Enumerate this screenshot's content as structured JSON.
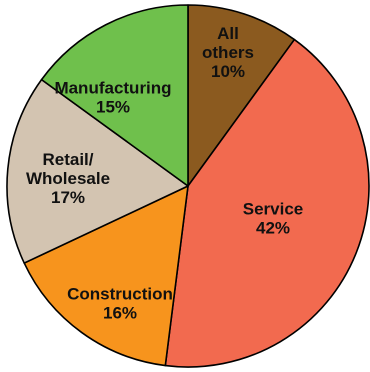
{
  "chart_data": {
    "type": "pie",
    "slices": [
      {
        "label": "All others",
        "label_lines": [
          "All",
          "others"
        ],
        "value": 10,
        "value_text": "10%",
        "color": "#8b5a1f"
      },
      {
        "label": "Service",
        "label_lines": [
          "Service"
        ],
        "value": 42,
        "value_text": "42%",
        "color": "#f26a4f"
      },
      {
        "label": "Construction",
        "label_lines": [
          "Construction"
        ],
        "value": 16,
        "value_text": "16%",
        "color": "#f7941d"
      },
      {
        "label": "Retail/ Wholesale",
        "label_lines": [
          "Retail/",
          "Wholesale"
        ],
        "value": 17,
        "value_text": "17%",
        "color": "#d3c4b1"
      },
      {
        "label": "Manufacturing",
        "label_lines": [
          "Manufacturing"
        ],
        "value": 15,
        "value_text": "15%",
        "color": "#6fc04c"
      }
    ]
  }
}
